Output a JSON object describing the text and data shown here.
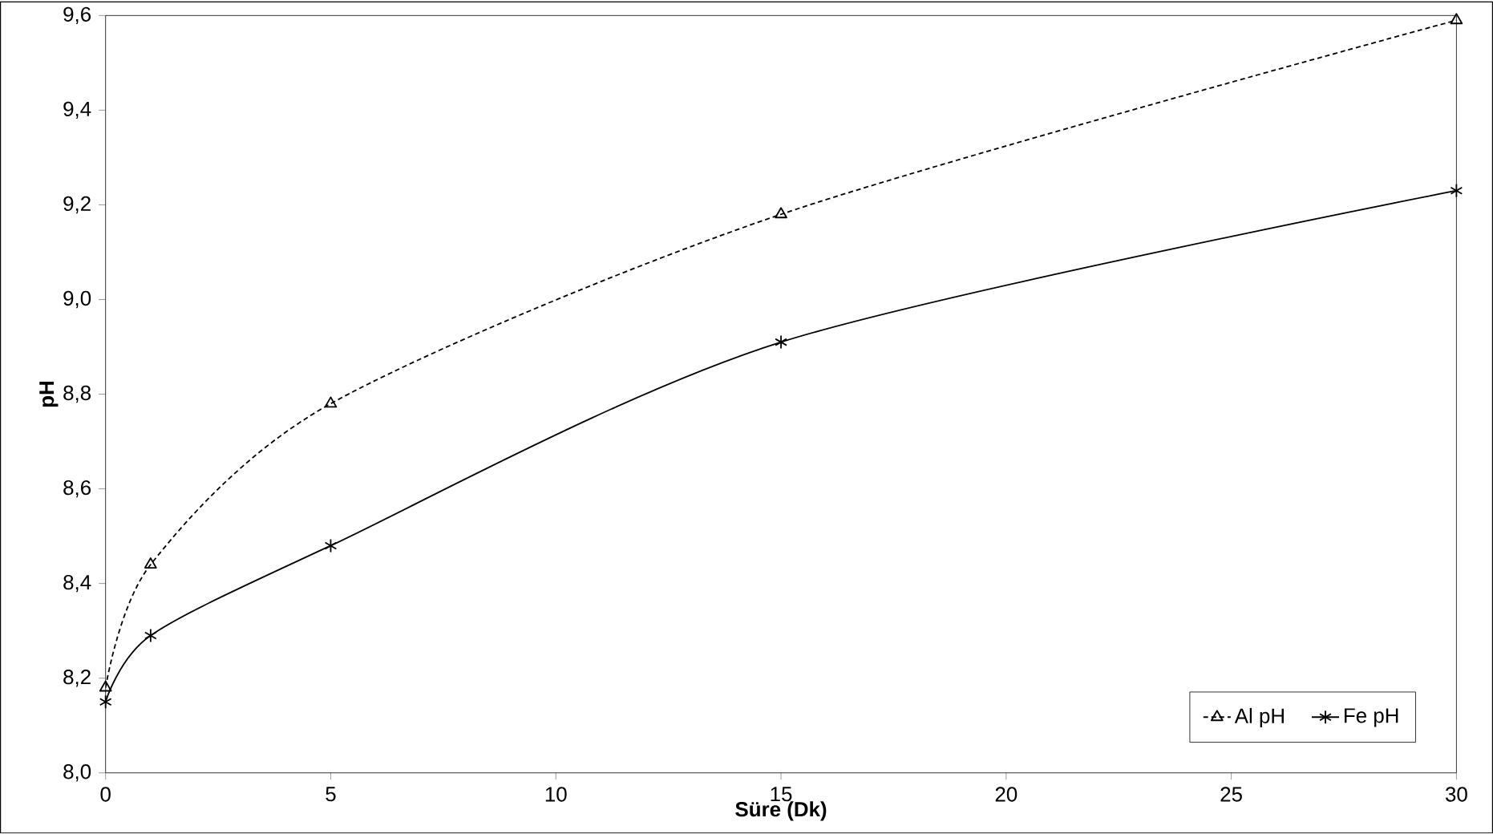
{
  "chart_data": {
    "type": "line",
    "xlabel": "Süre (Dk)",
    "ylabel": "pH",
    "xlim": [
      0,
      30
    ],
    "xticks": [
      0,
      5,
      10,
      15,
      20,
      25,
      30
    ],
    "ylim": [
      8.0,
      9.6
    ],
    "yticks": [
      {
        "value": 8.0,
        "label": "8,0"
      },
      {
        "value": 8.2,
        "label": "8,2"
      },
      {
        "value": 8.4,
        "label": "8,4"
      },
      {
        "value": 8.6,
        "label": "8,6"
      },
      {
        "value": 8.8,
        "label": "8,8"
      },
      {
        "value": 9.0,
        "label": "9,0"
      },
      {
        "value": 9.2,
        "label": "9,2"
      },
      {
        "value": 9.4,
        "label": "9,4"
      },
      {
        "value": 9.6,
        "label": "9,6"
      }
    ],
    "x": [
      0,
      1,
      5,
      15,
      30
    ],
    "grid": false,
    "legend": "bottom right",
    "series": [
      {
        "name": "Al pH",
        "color": "#000000",
        "marker": "triangle",
        "line_style": "dashed",
        "values": [
          8.18,
          8.44,
          8.78,
          9.18,
          9.59
        ]
      },
      {
        "name": "Fe pH",
        "color": "#000000",
        "marker": "cross",
        "line_style": "solid",
        "values": [
          8.15,
          8.29,
          8.48,
          8.91,
          9.23
        ]
      }
    ]
  }
}
